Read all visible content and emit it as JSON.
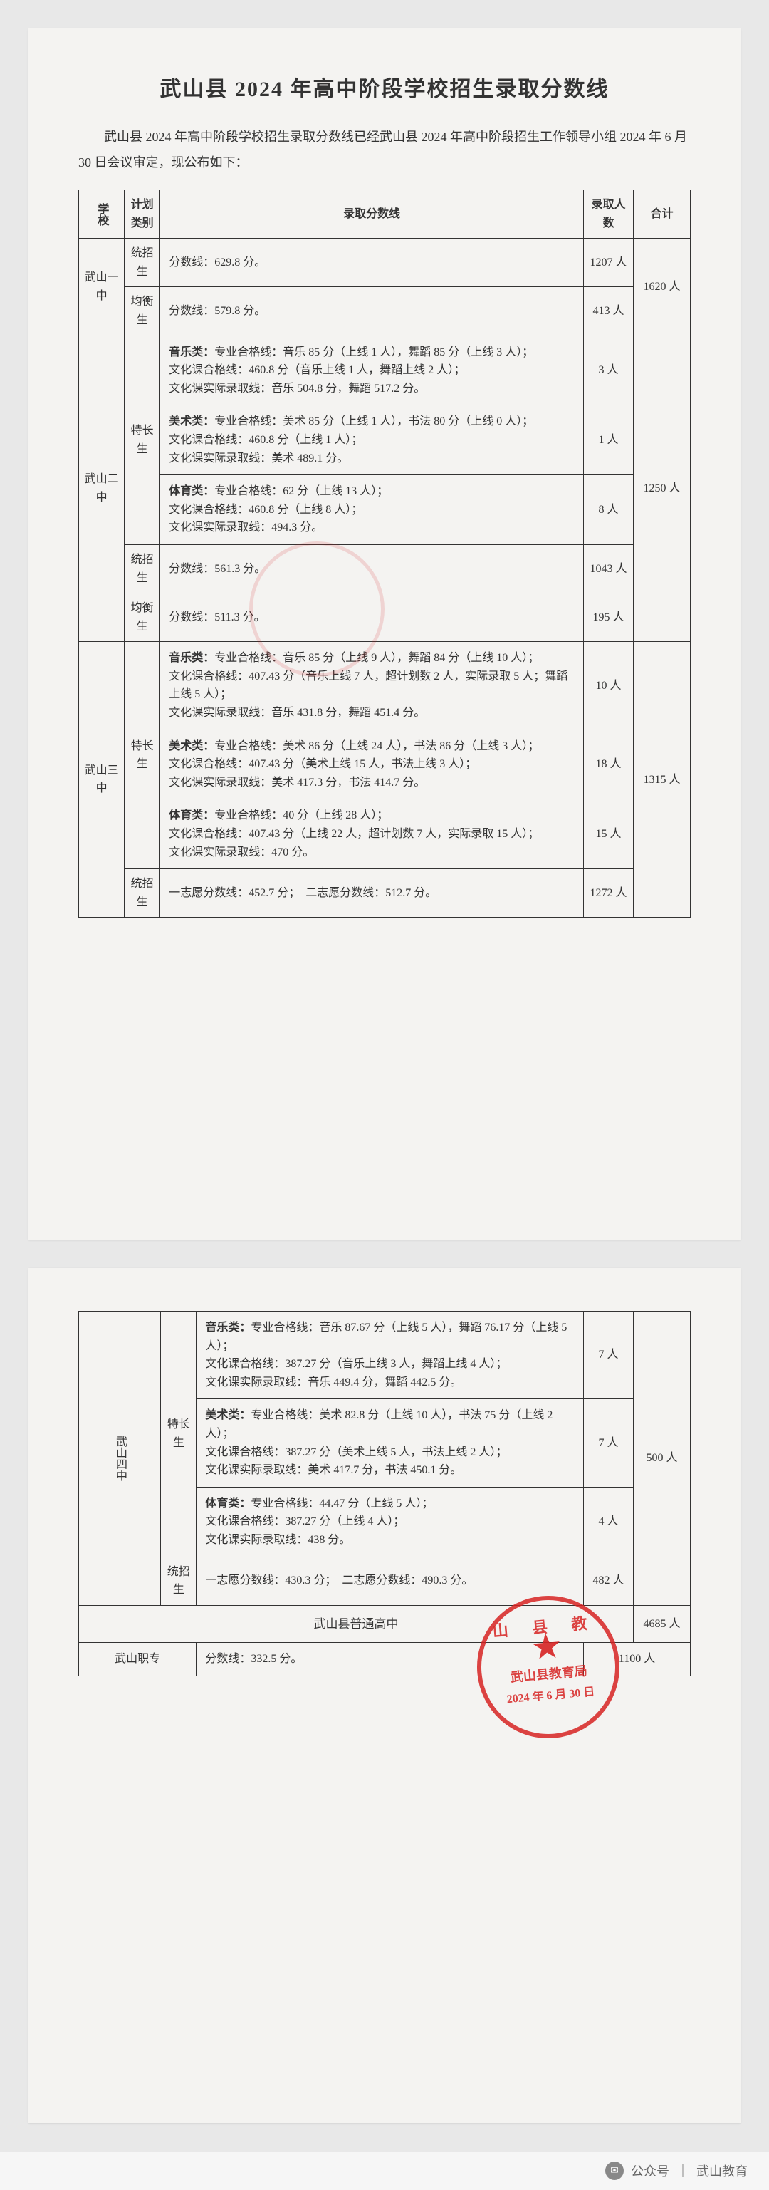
{
  "doc": {
    "title": "武山县 2024 年高中阶段学校招生录取分数线",
    "intro": "武山县 2024 年高中阶段学校招生录取分数线已经武山县 2024 年高中阶段招生工作领导小组 2024 年 6 月 30 日会议审定，现公布如下：",
    "headers": {
      "school": "学校",
      "plan": "计划类别",
      "score": "录取分数线",
      "count": "录取人数",
      "total": "合计"
    }
  },
  "table1": {
    "s1": {
      "name": "武山一中",
      "rows": [
        {
          "plan": "统招生",
          "detail": "分数线：629.8 分。",
          "count": "1207 人"
        },
        {
          "plan": "均衡生",
          "detail": "分数线：579.8 分。",
          "count": "413 人"
        }
      ],
      "total": "1620 人"
    },
    "s2": {
      "name": "武山二中",
      "spec_plan": "特长生",
      "spec_rows": [
        {
          "cat": "音乐类：",
          "detail": "专业合格线：音乐 85 分（上线 1 人），舞蹈 85 分（上线 3 人）；\n文化课合格线：460.8 分（音乐上线 1 人，舞蹈上线 2 人）；\n文化课实际录取线：音乐 504.8 分，舞蹈 517.2 分。",
          "count": "3 人"
        },
        {
          "cat": "美术类：",
          "detail": "专业合格线：美术 85 分（上线 1 人），书法 80 分（上线 0 人）；\n文化课合格线：460.8 分（上线 1 人）；\n文化课实际录取线：美术 489.1 分。",
          "count": "1 人"
        },
        {
          "cat": "体育类：",
          "detail": "专业合格线：62 分（上线 13 人）；\n文化课合格线：460.8 分（上线 8 人）；\n文化课实际录取线：494.3 分。",
          "count": "8 人"
        }
      ],
      "reg_rows": [
        {
          "plan": "统招生",
          "detail": "分数线：561.3 分。",
          "count": "1043 人"
        },
        {
          "plan": "均衡生",
          "detail": "分数线：511.3 分。",
          "count": "195 人"
        }
      ],
      "total": "1250 人"
    },
    "s3": {
      "name": "武山三中",
      "spec_plan": "特长生",
      "spec_rows": [
        {
          "cat": "音乐类：",
          "detail": "专业合格线：音乐 85 分（上线 9 人），舞蹈 84 分（上线 10 人）；\n文化课合格线：407.43 分（音乐上线 7 人，超计划数 2 人，实际录取 5 人；舞蹈上线 5 人）；\n文化课实际录取线：音乐 431.8 分，舞蹈 451.4 分。",
          "count": "10 人"
        },
        {
          "cat": "美术类：",
          "detail": "专业合格线：美术 86 分（上线 24 人），书法 86 分（上线 3 人）；\n文化课合格线：407.43 分（美术上线 15 人，书法上线 3 人）；\n文化课实际录取线：美术 417.3 分，书法 414.7 分。",
          "count": "18 人"
        },
        {
          "cat": "体育类：",
          "detail": "专业合格线：40 分（上线 28 人）；\n文化课合格线：407.43 分（上线 22 人，超计划数 7 人，实际录取 15 人）；\n文化课实际录取线：470 分。",
          "count": "15 人"
        }
      ],
      "reg_rows": [
        {
          "plan": "统招生",
          "detail": "一志愿分数线：452.7 分；　二志愿分数线：512.7 分。",
          "count": "1272 人"
        }
      ],
      "total": "1315 人"
    }
  },
  "table2": {
    "s4": {
      "name": "武山四中",
      "spec_plan": "特长生",
      "spec_rows": [
        {
          "cat": "音乐类：",
          "detail": "专业合格线：音乐 87.67 分（上线 5 人），舞蹈 76.17 分（上线 5 人）；\n文化课合格线：387.27 分（音乐上线 3 人，舞蹈上线 4 人）；\n文化课实际录取线：音乐 449.4 分，舞蹈 442.5 分。",
          "count": "7 人"
        },
        {
          "cat": "美术类：",
          "detail": "专业合格线：美术 82.8 分（上线 10 人），书法 75 分（上线 2 人）；\n文化课合格线：387.27 分（美术上线 5 人，书法上线 2 人）；\n文化课实际录取线：美术 417.7 分，书法 450.1 分。",
          "count": "7 人"
        },
        {
          "cat": "体育类：",
          "detail": "专业合格线：44.47 分（上线 5 人）；\n文化课合格线：387.27 分（上线 4 人）；\n文化课实际录取线：438 分。",
          "count": "4 人"
        }
      ],
      "reg_rows": [
        {
          "plan": "统招生",
          "detail": "一志愿分数线：430.3 分；　二志愿分数线：490.3 分。",
          "count": "482 人"
        }
      ],
      "total": "500 人"
    },
    "summary_label": "武山县普通高中",
    "summary_total": "4685 人",
    "voc": {
      "name": "武山职专",
      "detail": "分数线：332.5 分。",
      "count": "1100 人"
    }
  },
  "stamp": {
    "arc": "山 县 教",
    "org": "武山县教育局",
    "date": "2024 年 6 月 30 日"
  },
  "footer": {
    "prefix": "公众号",
    "name": "武山教育"
  }
}
